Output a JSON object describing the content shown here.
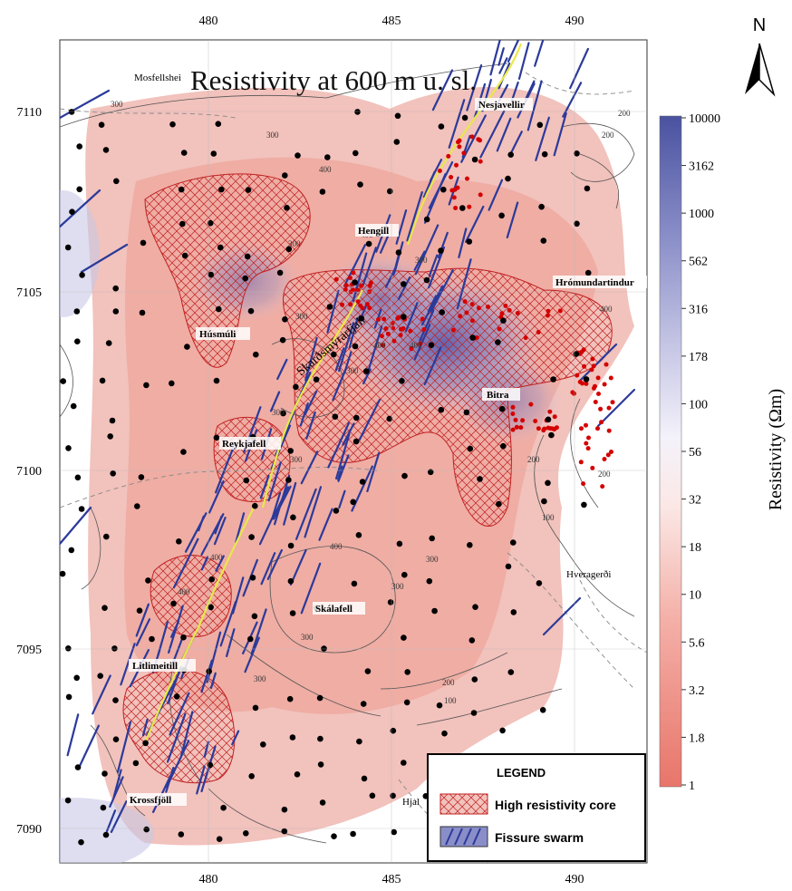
{
  "map": {
    "title": "Resistivity at 600 m u. sl.",
    "north_label": "N",
    "x_ticks": [
      "480",
      "485",
      "490"
    ],
    "y_ticks": [
      "7110",
      "7105",
      "7100",
      "7095",
      "7090"
    ],
    "place_names": [
      {
        "name": "Mosfellsheiði",
        "text": "Mosfellshei"
      },
      {
        "name": "Nesjavellir",
        "text": "Nesjavellir"
      },
      {
        "name": "Hengill",
        "text": "Hengill"
      },
      {
        "name": "Hrómundartindur",
        "text": "Hrómundartindur"
      },
      {
        "name": "Húsmúli",
        "text": "Húsmúli"
      },
      {
        "name": "Skarðsmýrarfjall",
        "text": "Skarðsmýrarfjall"
      },
      {
        "name": "Bitra",
        "text": "Bitra"
      },
      {
        "name": "Reykjafell",
        "text": "Reykjafell"
      },
      {
        "name": "Hveragerði",
        "text": "Hveragerði"
      },
      {
        "name": "Skálafell",
        "text": "Skálafell"
      },
      {
        "name": "Litlimeitill",
        "text": "Litlimeitill"
      },
      {
        "name": "Krossfjöll",
        "text": "Krossfjöll"
      },
      {
        "name": "Hjalli",
        "text": "Hjal"
      }
    ],
    "contour_labels": [
      "300",
      "300",
      "200",
      "200",
      "400",
      "400",
      "300",
      "300",
      "400",
      "300",
      "400",
      "300",
      "300",
      "200",
      "400",
      "100",
      "300",
      "300",
      "400",
      "400",
      "300",
      "300",
      "200",
      "100",
      "200",
      "400",
      "300"
    ]
  },
  "colorbar": {
    "label": "Resistivity (Ωm)",
    "ticks": [
      "10000",
      "3162",
      "1000",
      "562",
      "316",
      "178",
      "100",
      "56",
      "32",
      "18",
      "10",
      "5.6",
      "3.2",
      "1.8",
      "1"
    ],
    "low_color": "#e8756a",
    "mid_color": "#ffffff",
    "high_color": "#4a52a0"
  },
  "legend": {
    "title": "LEGEND",
    "items": [
      {
        "label": "High resistivity core"
      },
      {
        "label": "Fissure swarm"
      }
    ]
  },
  "colors": {
    "fissure": "#2b3a9a",
    "hotspot": "#d40000",
    "station": "#000000",
    "yellow_fissure": "#e8e84a",
    "contour": "#555555"
  }
}
